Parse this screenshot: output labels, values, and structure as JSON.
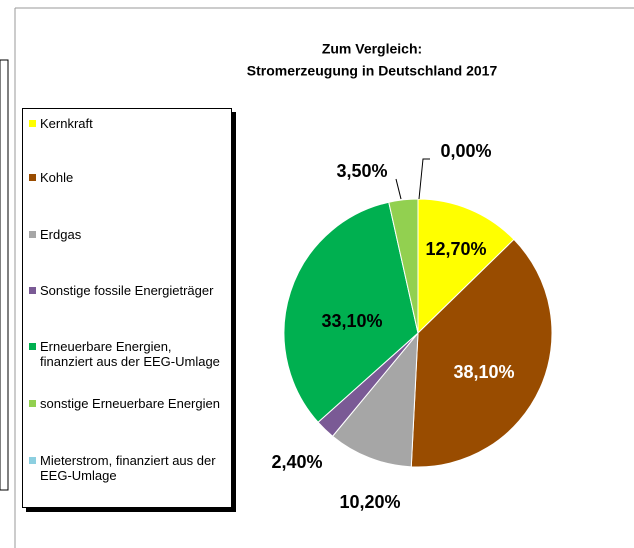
{
  "chart_data": {
    "type": "pie",
    "title": [
      "Zum Vergleich:",
      "Stromerzeugung in Deutschland 2017"
    ],
    "categories": [
      "Kernkraft",
      "Kohle",
      "Erdgas",
      "Sonstige fossile Energieträger",
      "Erneuerbare Energien, finanziert aus der EEG-Umlage",
      "sonstige Erneuerbare Energien",
      "Mieterstrom, finanziert aus der EEG-Umlage"
    ],
    "values": [
      12.7,
      38.1,
      10.2,
      2.4,
      33.1,
      3.5,
      0.0
    ],
    "value_labels": [
      "12,70%",
      "38,10%",
      "10,20%",
      "2,40%",
      "33,10%",
      "3,50%",
      "0,00%"
    ],
    "colors": [
      "#ffff00",
      "#994c00",
      "#a6a6a6",
      "#7a5a95",
      "#00b050",
      "#92d050",
      "#8ccfe0"
    ],
    "legend": "left"
  }
}
